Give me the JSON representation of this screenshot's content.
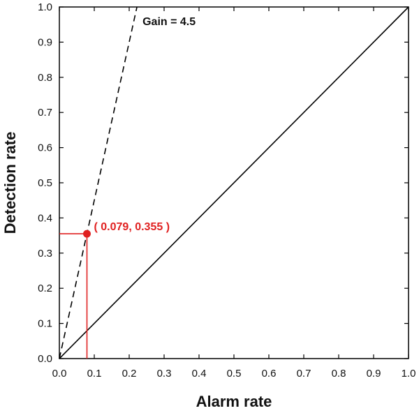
{
  "chart_data": {
    "type": "line",
    "xlabel": "Alarm rate",
    "ylabel": "Detection rate",
    "xlim": [
      0.0,
      1.0
    ],
    "ylim": [
      0.0,
      1.0
    ],
    "x_ticks": [
      "0.0",
      "0.1",
      "0.2",
      "0.3",
      "0.4",
      "0.5",
      "0.6",
      "0.7",
      "0.8",
      "0.9",
      "1.0"
    ],
    "y_ticks": [
      "0.0",
      "0.1",
      "0.2",
      "0.3",
      "0.4",
      "0.5",
      "0.6",
      "0.7",
      "0.8",
      "0.9",
      "1.0"
    ],
    "grid": false,
    "series": [
      {
        "style": "solid",
        "color": "#000000",
        "x": [
          0.0,
          1.0
        ],
        "y": [
          0.0,
          1.0
        ]
      },
      {
        "style": "dashed",
        "color": "#000000",
        "x": [
          0.0,
          0.2222
        ],
        "y": [
          0.0,
          1.0
        ],
        "label": "Gain = 4.5"
      }
    ],
    "point": {
      "x": 0.079,
      "y": 0.355,
      "label": "( 0.079, 0.355 )",
      "color": "#e02020"
    }
  }
}
